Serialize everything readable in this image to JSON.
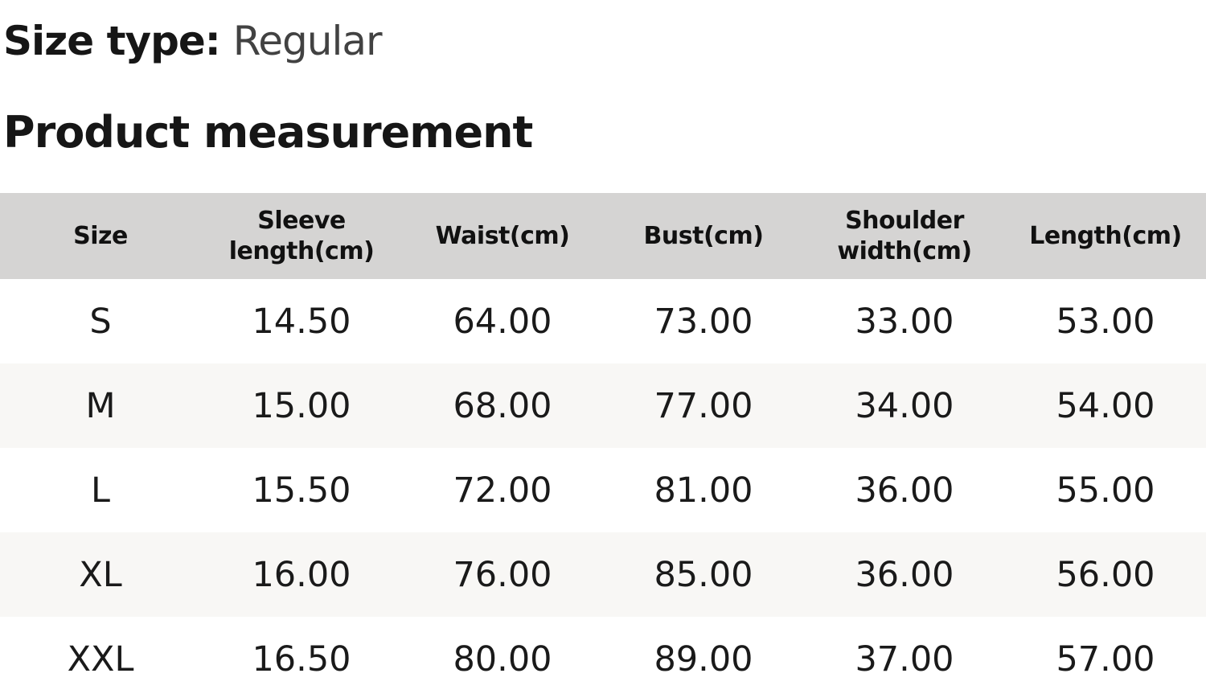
{
  "header": {
    "size_type_label": "Size type:",
    "size_type_value": "Regular",
    "section_title": "Product measurement"
  },
  "table": {
    "columns": [
      "Size",
      "Sleeve length(cm)",
      "Waist(cm)",
      "Bust(cm)",
      "Shoulder width(cm)",
      "Length(cm)"
    ],
    "rows": [
      {
        "size": "S",
        "values": [
          "14.50",
          "64.00",
          "73.00",
          "33.00",
          "53.00"
        ]
      },
      {
        "size": "M",
        "values": [
          "15.00",
          "68.00",
          "77.00",
          "34.00",
          "54.00"
        ]
      },
      {
        "size": "L",
        "values": [
          "15.50",
          "72.00",
          "81.00",
          "36.00",
          "55.00"
        ]
      },
      {
        "size": "XL",
        "values": [
          "16.00",
          "76.00",
          "85.00",
          "36.00",
          "56.00"
        ]
      },
      {
        "size": "XXL",
        "values": [
          "16.50",
          "80.00",
          "89.00",
          "37.00",
          "57.00"
        ]
      }
    ]
  },
  "colors": {
    "header_bg": "#d5d4d3",
    "stripe_bg": "#f8f7f5",
    "row_bg": "#ffffff",
    "heading_text": "#161616",
    "muted_text": "#424242",
    "value_text": "#1a1a1a"
  }
}
